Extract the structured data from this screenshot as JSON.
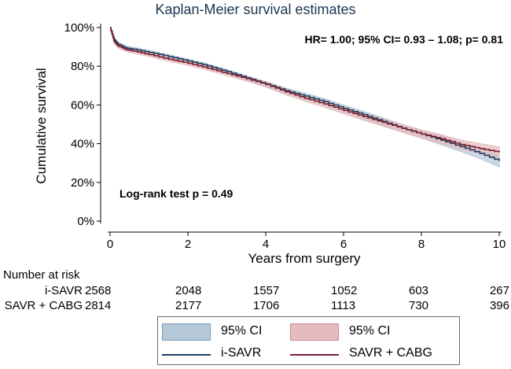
{
  "chart_data": {
    "type": "line",
    "title": "Kaplan-Meier survival estimates",
    "xlabel": "Years from surgery",
    "ylabel": "Cumulative survival",
    "xlim": [
      0,
      10
    ],
    "ylim": [
      0,
      100
    ],
    "x_ticks": [
      0,
      2,
      4,
      6,
      8,
      10
    ],
    "y_ticks": [
      0,
      20,
      40,
      60,
      80,
      100
    ],
    "y_tick_labels": [
      "0%",
      "20%",
      "40%",
      "60%",
      "80%",
      "100%"
    ],
    "grid": false,
    "annotations": {
      "hr_text": "HR= 1.00; 95% CI= 0.93 – 1.08; p= 0.81",
      "logrank_text": "Log-rank test p = 0.49"
    },
    "series": [
      {
        "name": "i-SAVR",
        "color": "#1f3f5f",
        "ci_color": "#b4c8d8",
        "ci_label": "95% CI",
        "x": [
          0,
          0.1,
          0.2,
          0.4,
          0.6,
          1,
          1.5,
          2,
          2.5,
          3,
          3.5,
          4,
          4.5,
          5,
          5.5,
          6,
          6.5,
          7,
          7.5,
          8,
          8.5,
          9,
          9.5,
          10
        ],
        "y": [
          100,
          94,
          91.5,
          89.5,
          88.8,
          87.2,
          85,
          82.7,
          80.2,
          77.2,
          74,
          70.8,
          67.4,
          64.6,
          61.7,
          58.2,
          55,
          51.5,
          48,
          45,
          41.8,
          38.5,
          35,
          31
        ],
        "ci_width": [
          0,
          1,
          1,
          1,
          1,
          1,
          1,
          1,
          1,
          1,
          1.2,
          1.3,
          1.4,
          1.5,
          1.6,
          1.7,
          1.8,
          1.9,
          2.0,
          2.1,
          2.3,
          2.5,
          2.7,
          3.0
        ]
      },
      {
        "name": "SAVR + CABG",
        "color": "#7a1f2f",
        "ci_color": "#e5bcbd",
        "ci_label": "95% CI",
        "x": [
          0,
          0.1,
          0.2,
          0.4,
          0.6,
          1,
          1.5,
          2,
          2.5,
          3,
          3.5,
          4,
          4.5,
          5,
          5.5,
          6,
          6.5,
          7,
          7.5,
          8,
          8.5,
          9,
          9.5,
          10
        ],
        "y": [
          100,
          93,
          90.5,
          88.7,
          87.8,
          86,
          83.6,
          81.5,
          79,
          76.2,
          73.6,
          70.6,
          66.8,
          63.5,
          60.5,
          57.2,
          54,
          51,
          48,
          45,
          42.5,
          39.5,
          37.5,
          35.5
        ],
        "ci_width": [
          0,
          1,
          1,
          1,
          1,
          1,
          1,
          1,
          1,
          1,
          1.2,
          1.3,
          1.4,
          1.5,
          1.6,
          1.7,
          1.8,
          1.9,
          2.0,
          2.1,
          2.2,
          2.4,
          2.6,
          2.8
        ]
      }
    ]
  },
  "risk_table": {
    "header": "Number at risk",
    "rows": [
      {
        "label": "i-SAVR",
        "values": [
          "2568",
          "2048",
          "1557",
          "1052",
          "603",
          "267"
        ]
      },
      {
        "label": "SAVR + CABG",
        "values": [
          "2814",
          "2177",
          "1706",
          "1113",
          "730",
          "396"
        ]
      }
    ]
  },
  "legend": {
    "ci_left": "95% CI",
    "ci_right": "95% CI",
    "line_left": "i-SAVR",
    "line_right": "SAVR + CABG"
  }
}
